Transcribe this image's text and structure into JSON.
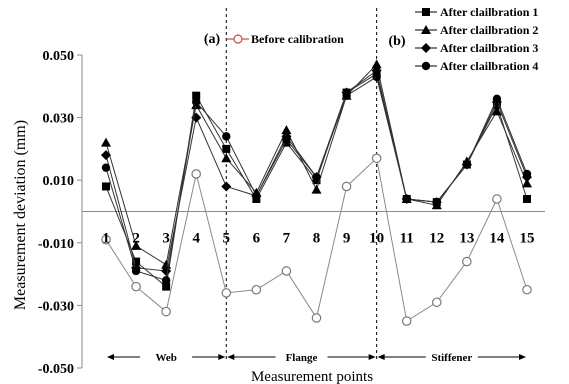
{
  "chart_data": {
    "type": "line",
    "ylabel": "Measurement deviation (mm)",
    "xlabel": "Measurement points",
    "ylim": [
      -0.05,
      0.05
    ],
    "yticks": [
      0.05,
      0.03,
      0.01,
      -0.01,
      -0.03,
      -0.05
    ],
    "ytick_labels": [
      "0.050",
      "0.030",
      "0.010",
      "-0.010",
      "-0.030",
      "-0.050"
    ],
    "x": [
      1,
      2,
      3,
      4,
      5,
      6,
      7,
      8,
      9,
      10,
      11,
      12,
      13,
      14,
      15
    ],
    "x_labels": [
      "1",
      "2",
      "3",
      "4",
      "5",
      "6",
      "7",
      "8",
      "9",
      "10",
      "11",
      "12",
      "13",
      "14",
      "15"
    ],
    "panel_labels": {
      "a": "(a)",
      "b": "(b)"
    },
    "grid": false,
    "legend_position": "top-right",
    "series": [
      {
        "name": "Before calibration",
        "marker": "open-circle",
        "color": "#7a7a7a",
        "values": [
          -0.009,
          -0.024,
          -0.032,
          0.012,
          -0.026,
          -0.025,
          -0.019,
          -0.034,
          0.008,
          0.017,
          -0.035,
          -0.029,
          -0.016,
          0.004,
          -0.025
        ]
      },
      {
        "name": "After clailbration 1",
        "marker": "square",
        "color": "#000000",
        "values": [
          0.008,
          -0.016,
          -0.024,
          0.037,
          0.02,
          0.004,
          0.022,
          0.01,
          0.038,
          0.044,
          0.004,
          0.003,
          0.015,
          0.034,
          0.004
        ]
      },
      {
        "name": "After clailbration 2",
        "marker": "triangle",
        "color": "#000000",
        "values": [
          0.022,
          -0.011,
          -0.017,
          0.034,
          0.017,
          0.006,
          0.026,
          0.007,
          0.037,
          0.047,
          0.004,
          0.002,
          0.016,
          0.032,
          0.009
        ]
      },
      {
        "name": "After clailbration 3",
        "marker": "diamond",
        "color": "#000000",
        "values": [
          0.018,
          -0.018,
          -0.019,
          0.03,
          0.008,
          0.005,
          0.024,
          0.011,
          0.038,
          0.045,
          0.004,
          0.003,
          0.015,
          0.035,
          0.011
        ]
      },
      {
        "name": "After clailbration 4",
        "marker": "circle",
        "color": "#000000",
        "values": [
          0.014,
          -0.019,
          -0.022,
          0.035,
          0.024,
          0.005,
          0.023,
          0.011,
          0.037,
          0.043,
          0.004,
          0.003,
          0.015,
          0.036,
          0.012
        ]
      }
    ],
    "sections": [
      {
        "label": "Web",
        "from": 1,
        "to": 5
      },
      {
        "label": "Flange",
        "from": 5,
        "to": 10
      },
      {
        "label": "Stiffener",
        "from": 10,
        "to": 15
      }
    ]
  }
}
